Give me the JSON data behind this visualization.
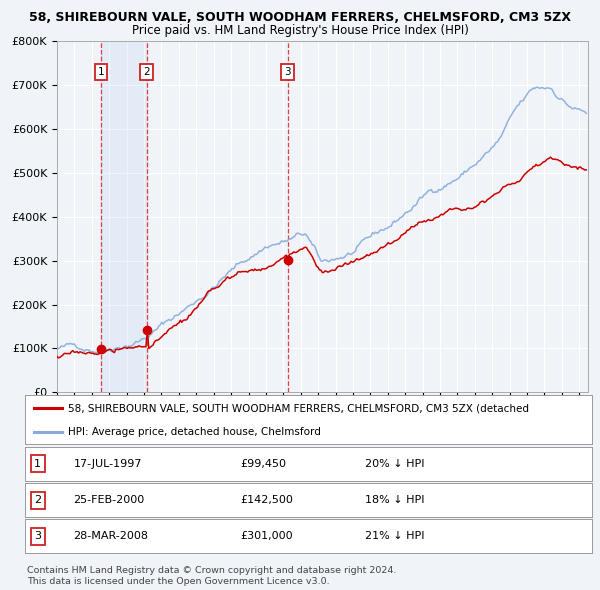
{
  "title1": "58, SHIREBOURN VALE, SOUTH WOODHAM FERRERS, CHELMSFORD, CM3 5ZX",
  "title2": "Price paid vs. HM Land Registry's House Price Index (HPI)",
  "fig_bg_color": "#f0f4f8",
  "plot_bg_color": "#f0f4f8",
  "grid_color": "#ffffff",
  "red_line_color": "#cc0000",
  "blue_line_color": "#88aadd",
  "sale1_date": 1997.54,
  "sale1_price": 99450,
  "sale2_date": 2000.15,
  "sale2_price": 142500,
  "sale3_date": 2008.24,
  "sale3_price": 301000,
  "legend_red": "58, SHIREBOURN VALE, SOUTH WOODHAM FERRERS, CHELMSFORD, CM3 5ZX (detached",
  "legend_blue": "HPI: Average price, detached house, Chelmsford",
  "table_rows": [
    {
      "num": "1",
      "date": "17-JUL-1997",
      "price": "£99,450",
      "hpi": "20% ↓ HPI"
    },
    {
      "num": "2",
      "date": "25-FEB-2000",
      "price": "£142,500",
      "hpi": "18% ↓ HPI"
    },
    {
      "num": "3",
      "date": "28-MAR-2008",
      "price": "£301,000",
      "hpi": "21% ↓ HPI"
    }
  ],
  "footer1": "Contains HM Land Registry data © Crown copyright and database right 2024.",
  "footer2": "This data is licensed under the Open Government Licence v3.0.",
  "xmin": 1995.0,
  "xmax": 2025.5,
  "ymin": 0,
  "ymax": 800000,
  "hpi_anchors_t": [
    0.0,
    0.08,
    0.167,
    0.25,
    0.32,
    0.4,
    0.47,
    0.5,
    0.57,
    0.633,
    0.7,
    0.77,
    0.833,
    0.867,
    0.9,
    0.933,
    0.967,
    1.0
  ],
  "hpi_anchors_v": [
    100000,
    105000,
    150000,
    220000,
    295000,
    365000,
    385000,
    310000,
    340000,
    385000,
    455000,
    510000,
    575000,
    640000,
    680000,
    685000,
    650000,
    630000
  ],
  "red_anchors_t": [
    0.0,
    0.08,
    0.167,
    0.25,
    0.32,
    0.4,
    0.47,
    0.5,
    0.57,
    0.633,
    0.7,
    0.77,
    0.833,
    0.867,
    0.9,
    0.933,
    0.967,
    1.0
  ],
  "red_anchors_v": [
    82000,
    88000,
    99450,
    160000,
    235000,
    265000,
    301000,
    250000,
    275000,
    310000,
    365000,
    400000,
    455000,
    475000,
    510000,
    530000,
    520000,
    515000
  ]
}
